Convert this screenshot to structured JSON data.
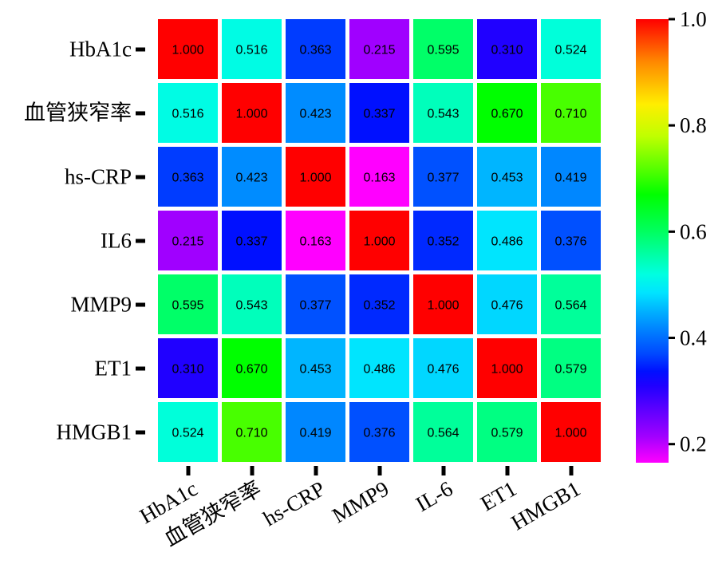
{
  "chart_data": {
    "type": "heatmap",
    "title": "",
    "row_labels": [
      "HbA1c",
      "血管狭窄率",
      "hs-CRP",
      "IL6",
      "MMP9",
      "ET1",
      "HMGB1"
    ],
    "col_labels": [
      "HbA1c",
      "血管狭窄率",
      "hs-CRP",
      "MMP9",
      "IL-6",
      "ET1",
      "HMGB1"
    ],
    "values": [
      [
        1.0,
        0.516,
        0.363,
        0.215,
        0.595,
        0.31,
        0.524
      ],
      [
        0.516,
        1.0,
        0.423,
        0.337,
        0.543,
        0.67,
        0.71
      ],
      [
        0.363,
        0.423,
        1.0,
        0.163,
        0.377,
        0.453,
        0.419
      ],
      [
        0.215,
        0.337,
        0.163,
        1.0,
        0.352,
        0.486,
        0.376
      ],
      [
        0.595,
        0.543,
        0.377,
        0.352,
        1.0,
        0.476,
        0.564
      ],
      [
        0.31,
        0.67,
        0.453,
        0.486,
        0.476,
        1.0,
        0.579
      ],
      [
        0.524,
        0.71,
        0.419,
        0.376,
        0.564,
        0.579,
        1.0
      ]
    ],
    "colorbar": {
      "range": [
        0.165,
        1.0
      ],
      "ticks": [
        "0.2",
        "0.4",
        "0.6",
        "0.8",
        "1.0"
      ],
      "tick_values": [
        0.2,
        0.4,
        0.6,
        0.8,
        1.0
      ],
      "colormap": [
        [
          0.163,
          "#ff00ff"
        ],
        [
          0.215,
          "#a000ff"
        ],
        [
          0.31,
          "#2000ff"
        ],
        [
          0.337,
          "#0010ff"
        ],
        [
          0.37,
          "#0048ff"
        ],
        [
          0.42,
          "#0088ff"
        ],
        [
          0.455,
          "#00b8ff"
        ],
        [
          0.485,
          "#00e4ff"
        ],
        [
          0.52,
          "#00ffe0"
        ],
        [
          0.56,
          "#00ffa0"
        ],
        [
          0.6,
          "#00ff60"
        ],
        [
          0.67,
          "#00ff00"
        ],
        [
          0.71,
          "#48ff00"
        ],
        [
          0.78,
          "#c0ff00"
        ],
        [
          0.84,
          "#ffee00"
        ],
        [
          0.92,
          "#ff8800"
        ],
        [
          1.0,
          "#ff0000"
        ]
      ]
    }
  }
}
